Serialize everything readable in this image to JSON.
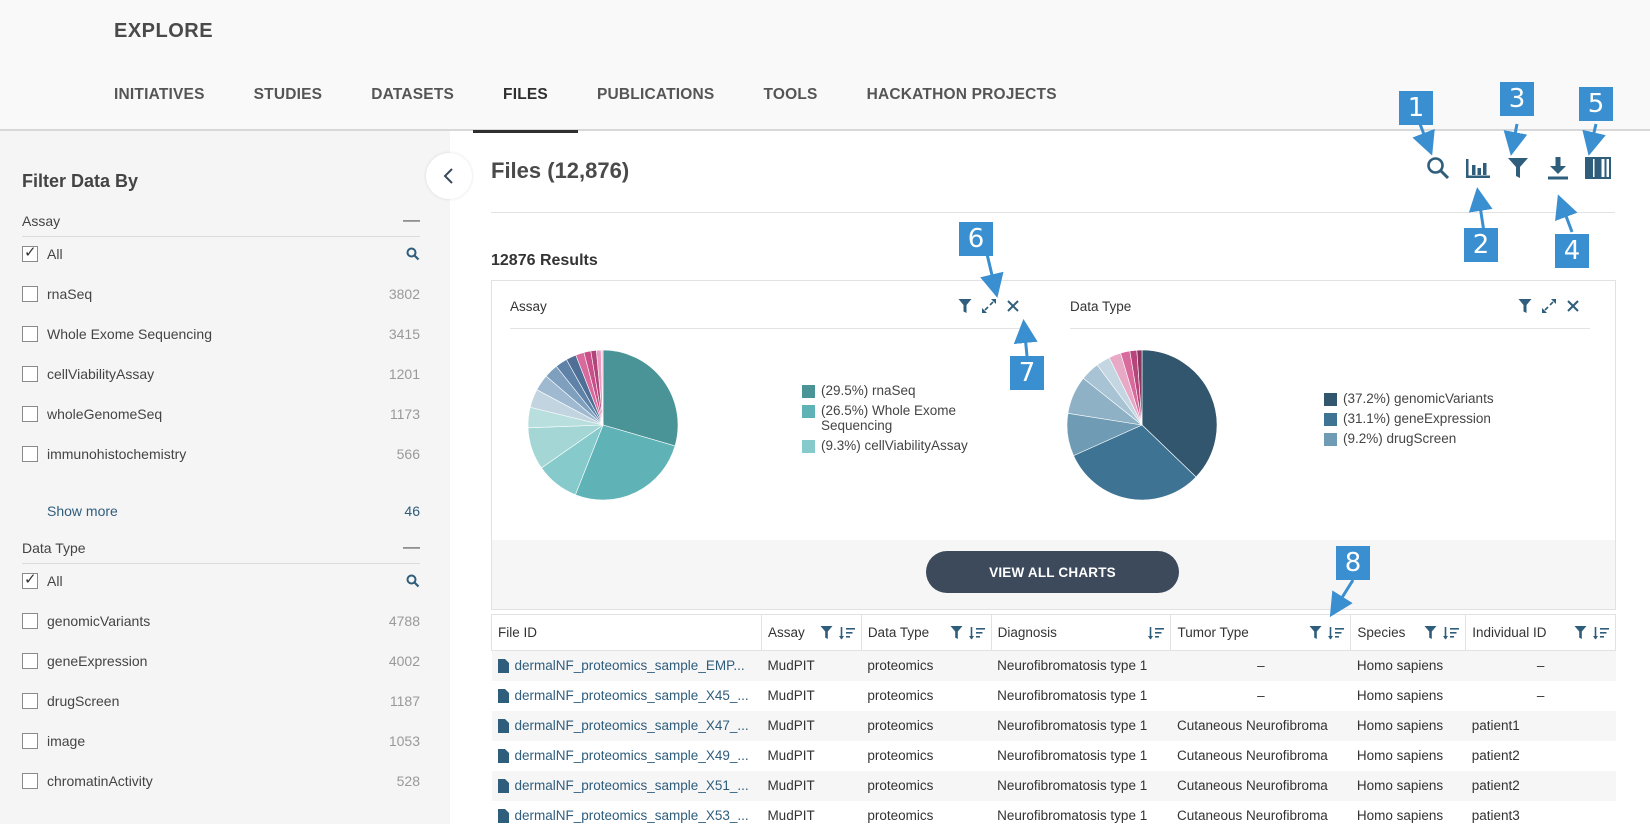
{
  "header": {
    "title": "EXPLORE",
    "tabs": [
      "INITIATIVES",
      "STUDIES",
      "DATASETS",
      "FILES",
      "PUBLICATIONS",
      "TOOLS",
      "HACKATHON PROJECTS"
    ],
    "active_tab": "FILES"
  },
  "sidebar": {
    "title": "Filter Data By",
    "collapse_icon": "chevron-left-icon",
    "sections": [
      {
        "title": "Assay",
        "toggle": "—",
        "all_label": "All",
        "items": [
          {
            "label": "rnaSeq",
            "count": "3802"
          },
          {
            "label": "Whole Exome Sequencing",
            "count": "3415"
          },
          {
            "label": "cellViabilityAssay",
            "count": "1201"
          },
          {
            "label": "wholeGenomeSeq",
            "count": "1173"
          },
          {
            "label": "immunohistochemistry",
            "count": "566"
          }
        ],
        "show_more": "Show more",
        "show_more_count": "46"
      },
      {
        "title": "Data Type",
        "toggle": "—",
        "all_label": "All",
        "items": [
          {
            "label": "genomicVariants",
            "count": "4788"
          },
          {
            "label": "geneExpression",
            "count": "4002"
          },
          {
            "label": "drugScreen",
            "count": "1187"
          },
          {
            "label": "image",
            "count": "1053"
          },
          {
            "label": "chromatinActivity",
            "count": "528"
          }
        ]
      }
    ]
  },
  "main": {
    "title": "Files (12,876)",
    "results": "12876 Results",
    "toolbar_icons": [
      "search-icon",
      "bar-chart-icon",
      "filter-icon",
      "download-icon",
      "columns-icon"
    ],
    "view_all_label": "VIEW ALL CHARTS"
  },
  "charts": [
    {
      "title": "Assay",
      "legend": [
        {
          "label": "(29.5%) rnaSeq",
          "color": "#4a9497"
        },
        {
          "label": "(26.5%) Whole Exome Sequencing",
          "color": "#5fb3b6"
        },
        {
          "label": "(9.3%) cellViabilityAssay",
          "color": "#86cacb"
        }
      ]
    },
    {
      "title": "Data Type",
      "legend": [
        {
          "label": "(37.2%) genomicVariants",
          "color": "#31566e"
        },
        {
          "label": "(31.1%) geneExpression",
          "color": "#3e7394"
        },
        {
          "label": "(9.2%) drugScreen",
          "color": "#6f9bb5"
        }
      ]
    }
  ],
  "chart_data": [
    {
      "type": "pie",
      "title": "Assay",
      "labels": [
        "rnaSeq",
        "Whole Exome Sequencing",
        "cellViabilityAssay",
        "",
        "",
        "",
        "",
        "",
        "",
        "",
        "",
        "",
        "",
        "",
        ""
      ],
      "values": [
        29.5,
        26.5,
        9.3,
        9.1,
        4.4,
        4.0,
        3.5,
        3.0,
        2.6,
        2.2,
        1.8,
        1.5,
        1.2,
        1.0,
        0.4
      ],
      "colors": [
        "#4a9497",
        "#5fb3b6",
        "#86cacb",
        "#a4d6d6",
        "#b9dede",
        "#c2d4df",
        "#9fbad0",
        "#7f9fbf",
        "#5e82a8",
        "#4f6f96",
        "#d86a9c",
        "#c84f87",
        "#b2447a",
        "#e89bbf",
        "#f1c3d6"
      ]
    },
    {
      "type": "pie",
      "title": "Data Type",
      "labels": [
        "genomicVariants",
        "geneExpression",
        "drugScreen",
        "",
        "",
        "",
        "",
        "",
        "",
        ""
      ],
      "values": [
        37.2,
        31.1,
        9.2,
        8.2,
        4.1,
        3.0,
        2.6,
        2.0,
        1.5,
        1.1
      ],
      "colors": [
        "#31566e",
        "#3e7394",
        "#6f9bb5",
        "#8fb1c6",
        "#a8c3d3",
        "#c3d6e1",
        "#e8a9c6",
        "#d86a9c",
        "#b7447b",
        "#8c3560"
      ]
    }
  ],
  "table": {
    "columns": [
      {
        "label": "File ID",
        "filter": false,
        "sort": false
      },
      {
        "label": "Assay",
        "filter": true,
        "sort": true
      },
      {
        "label": "Data Type",
        "filter": true,
        "sort": true
      },
      {
        "label": "Diagnosis",
        "filter": false,
        "sort": true
      },
      {
        "label": "Tumor Type",
        "filter": true,
        "sort": true
      },
      {
        "label": "Species",
        "filter": true,
        "sort": true
      },
      {
        "label": "Individual ID",
        "filter": true,
        "sort": true
      }
    ],
    "rows": [
      [
        "dermalNF_proteomics_sample_EMP...",
        "MudPIT",
        "proteomics",
        "Neurofibromatosis type 1",
        "–",
        "Homo sapiens",
        "–"
      ],
      [
        "dermalNF_proteomics_sample_X45_...",
        "MudPIT",
        "proteomics",
        "Neurofibromatosis type 1",
        "–",
        "Homo sapiens",
        "–"
      ],
      [
        "dermalNF_proteomics_sample_X47_...",
        "MudPIT",
        "proteomics",
        "Neurofibromatosis type 1",
        "Cutaneous Neurofibroma",
        "Homo sapiens",
        "patient1"
      ],
      [
        "dermalNF_proteomics_sample_X49_...",
        "MudPIT",
        "proteomics",
        "Neurofibromatosis type 1",
        "Cutaneous Neurofibroma",
        "Homo sapiens",
        "patient2"
      ],
      [
        "dermalNF_proteomics_sample_X51_...",
        "MudPIT",
        "proteomics",
        "Neurofibromatosis type 1",
        "Cutaneous Neurofibroma",
        "Homo sapiens",
        "patient2"
      ],
      [
        "dermalNF_proteomics_sample_X53_...",
        "MudPIT",
        "proteomics",
        "Neurofibromatosis type 1",
        "Cutaneous Neurofibroma",
        "Homo sapiens",
        "patient3"
      ]
    ]
  },
  "callouts": [
    "1",
    "2",
    "3",
    "4",
    "5",
    "6",
    "7",
    "8"
  ],
  "colors": {
    "callout": "#3a8fd0",
    "accent": "#2f5d7c",
    "button": "#3c4a5c"
  }
}
